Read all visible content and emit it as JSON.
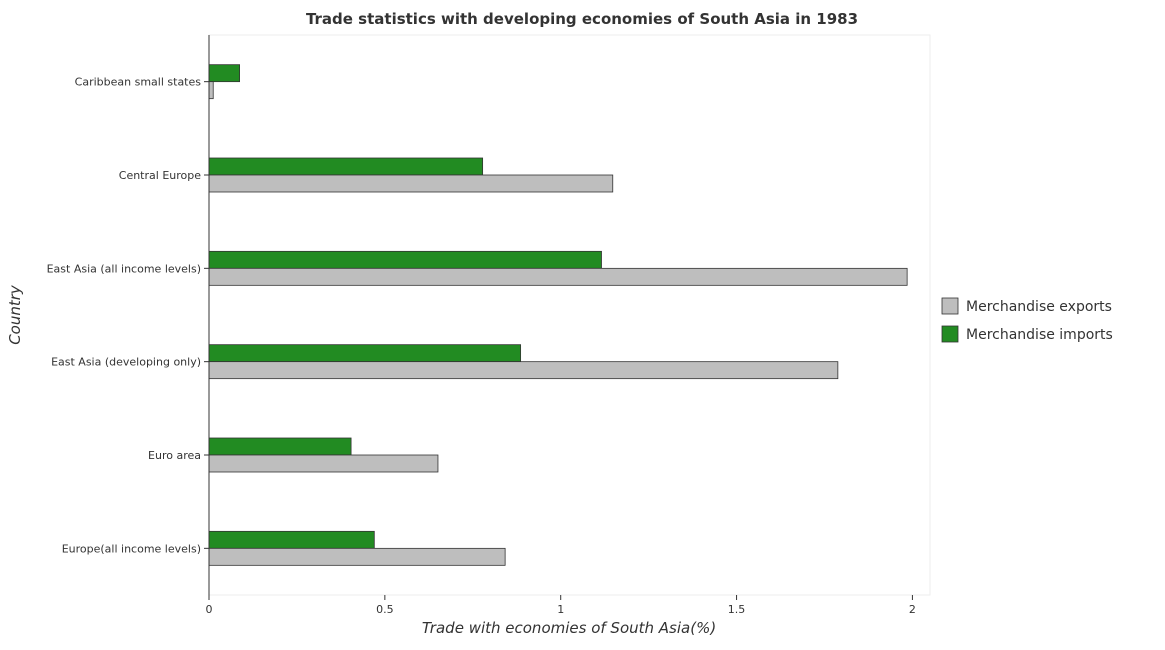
{
  "chart_data": {
    "type": "bar",
    "orientation": "horizontal",
    "title": "Trade statistics with developing economies of South Asia in 1983",
    "xlabel": "Trade with economies of South Asia(%)",
    "ylabel": "Country",
    "xlim": [
      0,
      2.05
    ],
    "xticks": [
      0,
      0.5,
      1,
      1.5,
      2
    ],
    "xtick_labels": [
      "0",
      "0.5",
      "1",
      "1.5",
      "2"
    ],
    "grid": false,
    "legend_position": "right",
    "categories": [
      "Caribbean small states",
      "Central Europe",
      "East Asia (all income levels)",
      "East Asia (developing only)",
      "Euro area",
      "Europe(all income levels)"
    ],
    "series": [
      {
        "name": "Merchandise exports",
        "color": "#bebebe",
        "values": [
          0.012,
          1.148,
          1.985,
          1.788,
          0.651,
          0.842
        ]
      },
      {
        "name": "Merchandise imports",
        "color": "#228b22",
        "values": [
          0.087,
          0.778,
          1.116,
          0.886,
          0.404,
          0.47
        ]
      }
    ]
  }
}
